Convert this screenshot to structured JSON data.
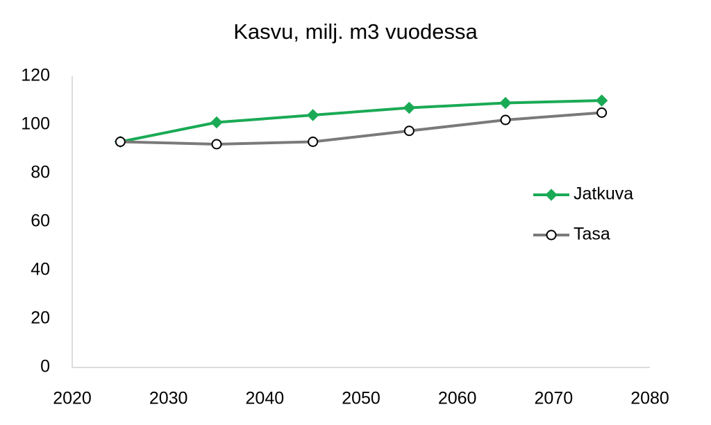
{
  "chart_data": {
    "type": "line",
    "title": "Kasvu, milj. m3 vuodessa",
    "x": [
      2025,
      2035,
      2045,
      2055,
      2065,
      2075
    ],
    "series": [
      {
        "name": "Jatkuva",
        "color": "#1aaa55",
        "marker": "diamond",
        "values": [
          93,
          101,
          104,
          107,
          109,
          110
        ]
      },
      {
        "name": "Tasa",
        "color": "#7a7a7a",
        "marker": "circle",
        "values": [
          93,
          92,
          93,
          97.5,
          102,
          105
        ]
      }
    ],
    "xlim": [
      2020,
      2080
    ],
    "xticks": [
      2020,
      2030,
      2040,
      2050,
      2060,
      2070,
      2080
    ],
    "ylim": [
      0,
      120
    ],
    "yticks": [
      0,
      20,
      40,
      60,
      80,
      100,
      120
    ],
    "grid": false,
    "legend": "right"
  }
}
